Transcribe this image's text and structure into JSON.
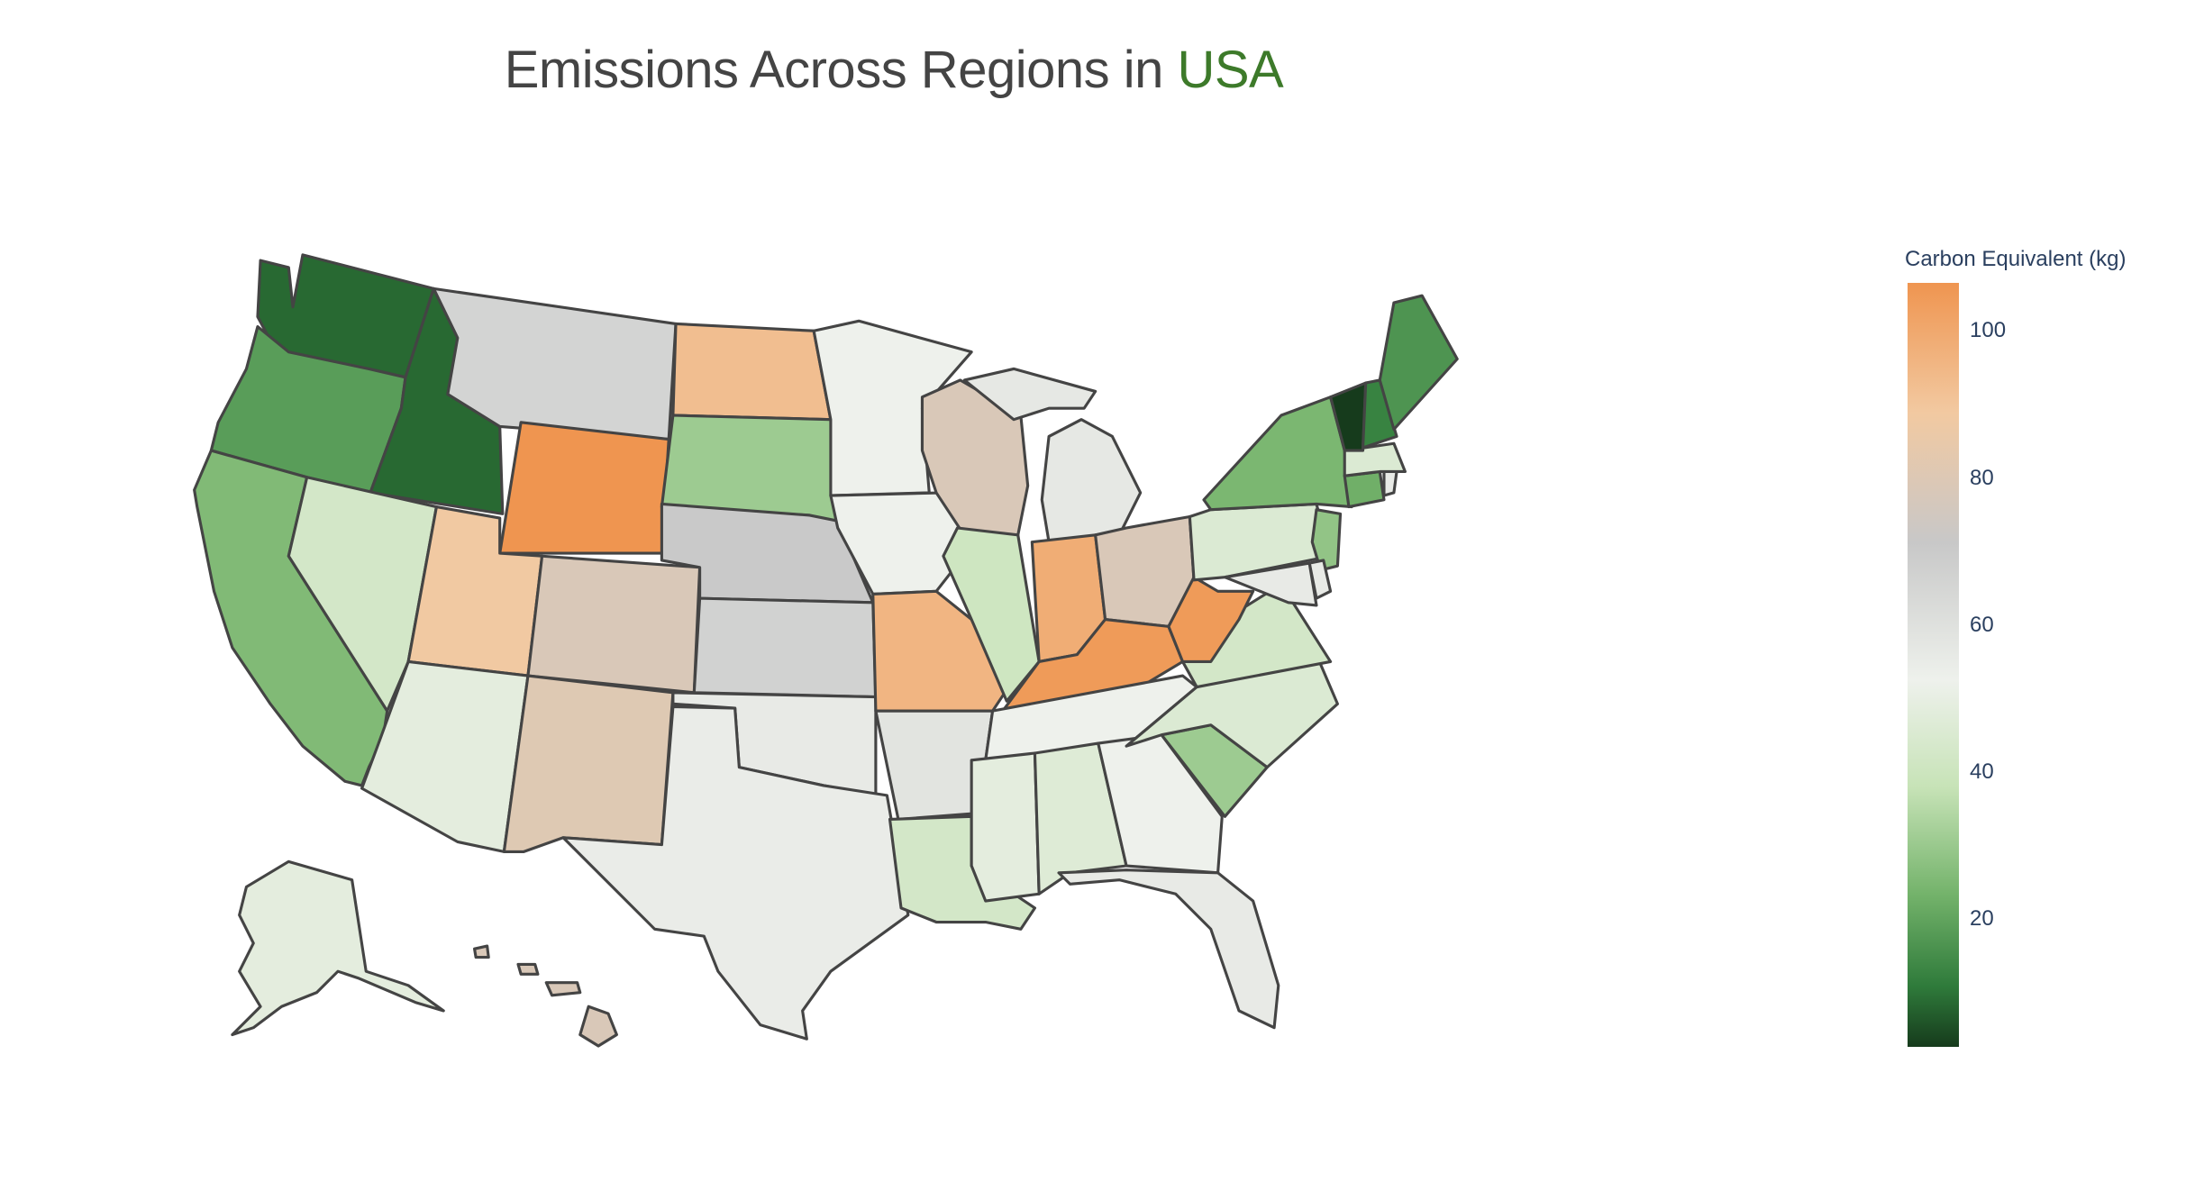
{
  "title": {
    "text": "Emissions Across Regions in ",
    "accent": "USA"
  },
  "colorbar": {
    "title": "Carbon Equivalent (kg)",
    "ticks": [
      "100",
      "80",
      "60",
      "40",
      "20"
    ]
  },
  "colors": {
    "accent": "#3d7a2a",
    "scale_high": "#ef9550",
    "scale_mid": "#eef1ec",
    "scale_low": "#163b1c"
  },
  "chart_data": {
    "type": "choropleth",
    "locationmode": "USA-states",
    "zlim": [
      2,
      106
    ],
    "states": [
      {
        "id": "WA",
        "value": 8
      },
      {
        "id": "OR",
        "value": 18
      },
      {
        "id": "CA",
        "value": 25
      },
      {
        "id": "ID",
        "value": 8
      },
      {
        "id": "NV",
        "value": 42
      },
      {
        "id": "MT",
        "value": 65
      },
      {
        "id": "WY",
        "value": 106
      },
      {
        "id": "UT",
        "value": 88
      },
      {
        "id": "AZ",
        "value": 48
      },
      {
        "id": "CO",
        "value": 78
      },
      {
        "id": "NM",
        "value": 80
      },
      {
        "id": "ND",
        "value": 92
      },
      {
        "id": "SD",
        "value": 30
      },
      {
        "id": "NE",
        "value": 70
      },
      {
        "id": "KS",
        "value": 66
      },
      {
        "id": "OK",
        "value": 55
      },
      {
        "id": "TX",
        "value": 54
      },
      {
        "id": "MN",
        "value": 52
      },
      {
        "id": "IA",
        "value": 52
      },
      {
        "id": "MO",
        "value": 95
      },
      {
        "id": "AR",
        "value": 58
      },
      {
        "id": "LA",
        "value": 42
      },
      {
        "id": "WI",
        "value": 78
      },
      {
        "id": "IL",
        "value": 40
      },
      {
        "id": "MI",
        "value": 56
      },
      {
        "id": "IN",
        "value": 98
      },
      {
        "id": "OH",
        "value": 78
      },
      {
        "id": "KY",
        "value": 104
      },
      {
        "id": "TN",
        "value": 52
      },
      {
        "id": "MS",
        "value": 48
      },
      {
        "id": "AL",
        "value": 46
      },
      {
        "id": "GA",
        "value": 52
      },
      {
        "id": "FL",
        "value": 55
      },
      {
        "id": "SC",
        "value": 30
      },
      {
        "id": "NC",
        "value": 45
      },
      {
        "id": "VA",
        "value": 42
      },
      {
        "id": "WV",
        "value": 104
      },
      {
        "id": "PA",
        "value": 45
      },
      {
        "id": "NY",
        "value": 24
      },
      {
        "id": "VT",
        "value": 2
      },
      {
        "id": "NH",
        "value": 12
      },
      {
        "id": "ME",
        "value": 16
      },
      {
        "id": "MA",
        "value": 45
      },
      {
        "id": "RI",
        "value": 55
      },
      {
        "id": "CT",
        "value": 22
      },
      {
        "id": "NJ",
        "value": 28
      },
      {
        "id": "DE",
        "value": 55
      },
      {
        "id": "MD",
        "value": 55
      },
      {
        "id": "AK",
        "value": 48
      },
      {
        "id": "HI",
        "value": 78
      }
    ]
  }
}
